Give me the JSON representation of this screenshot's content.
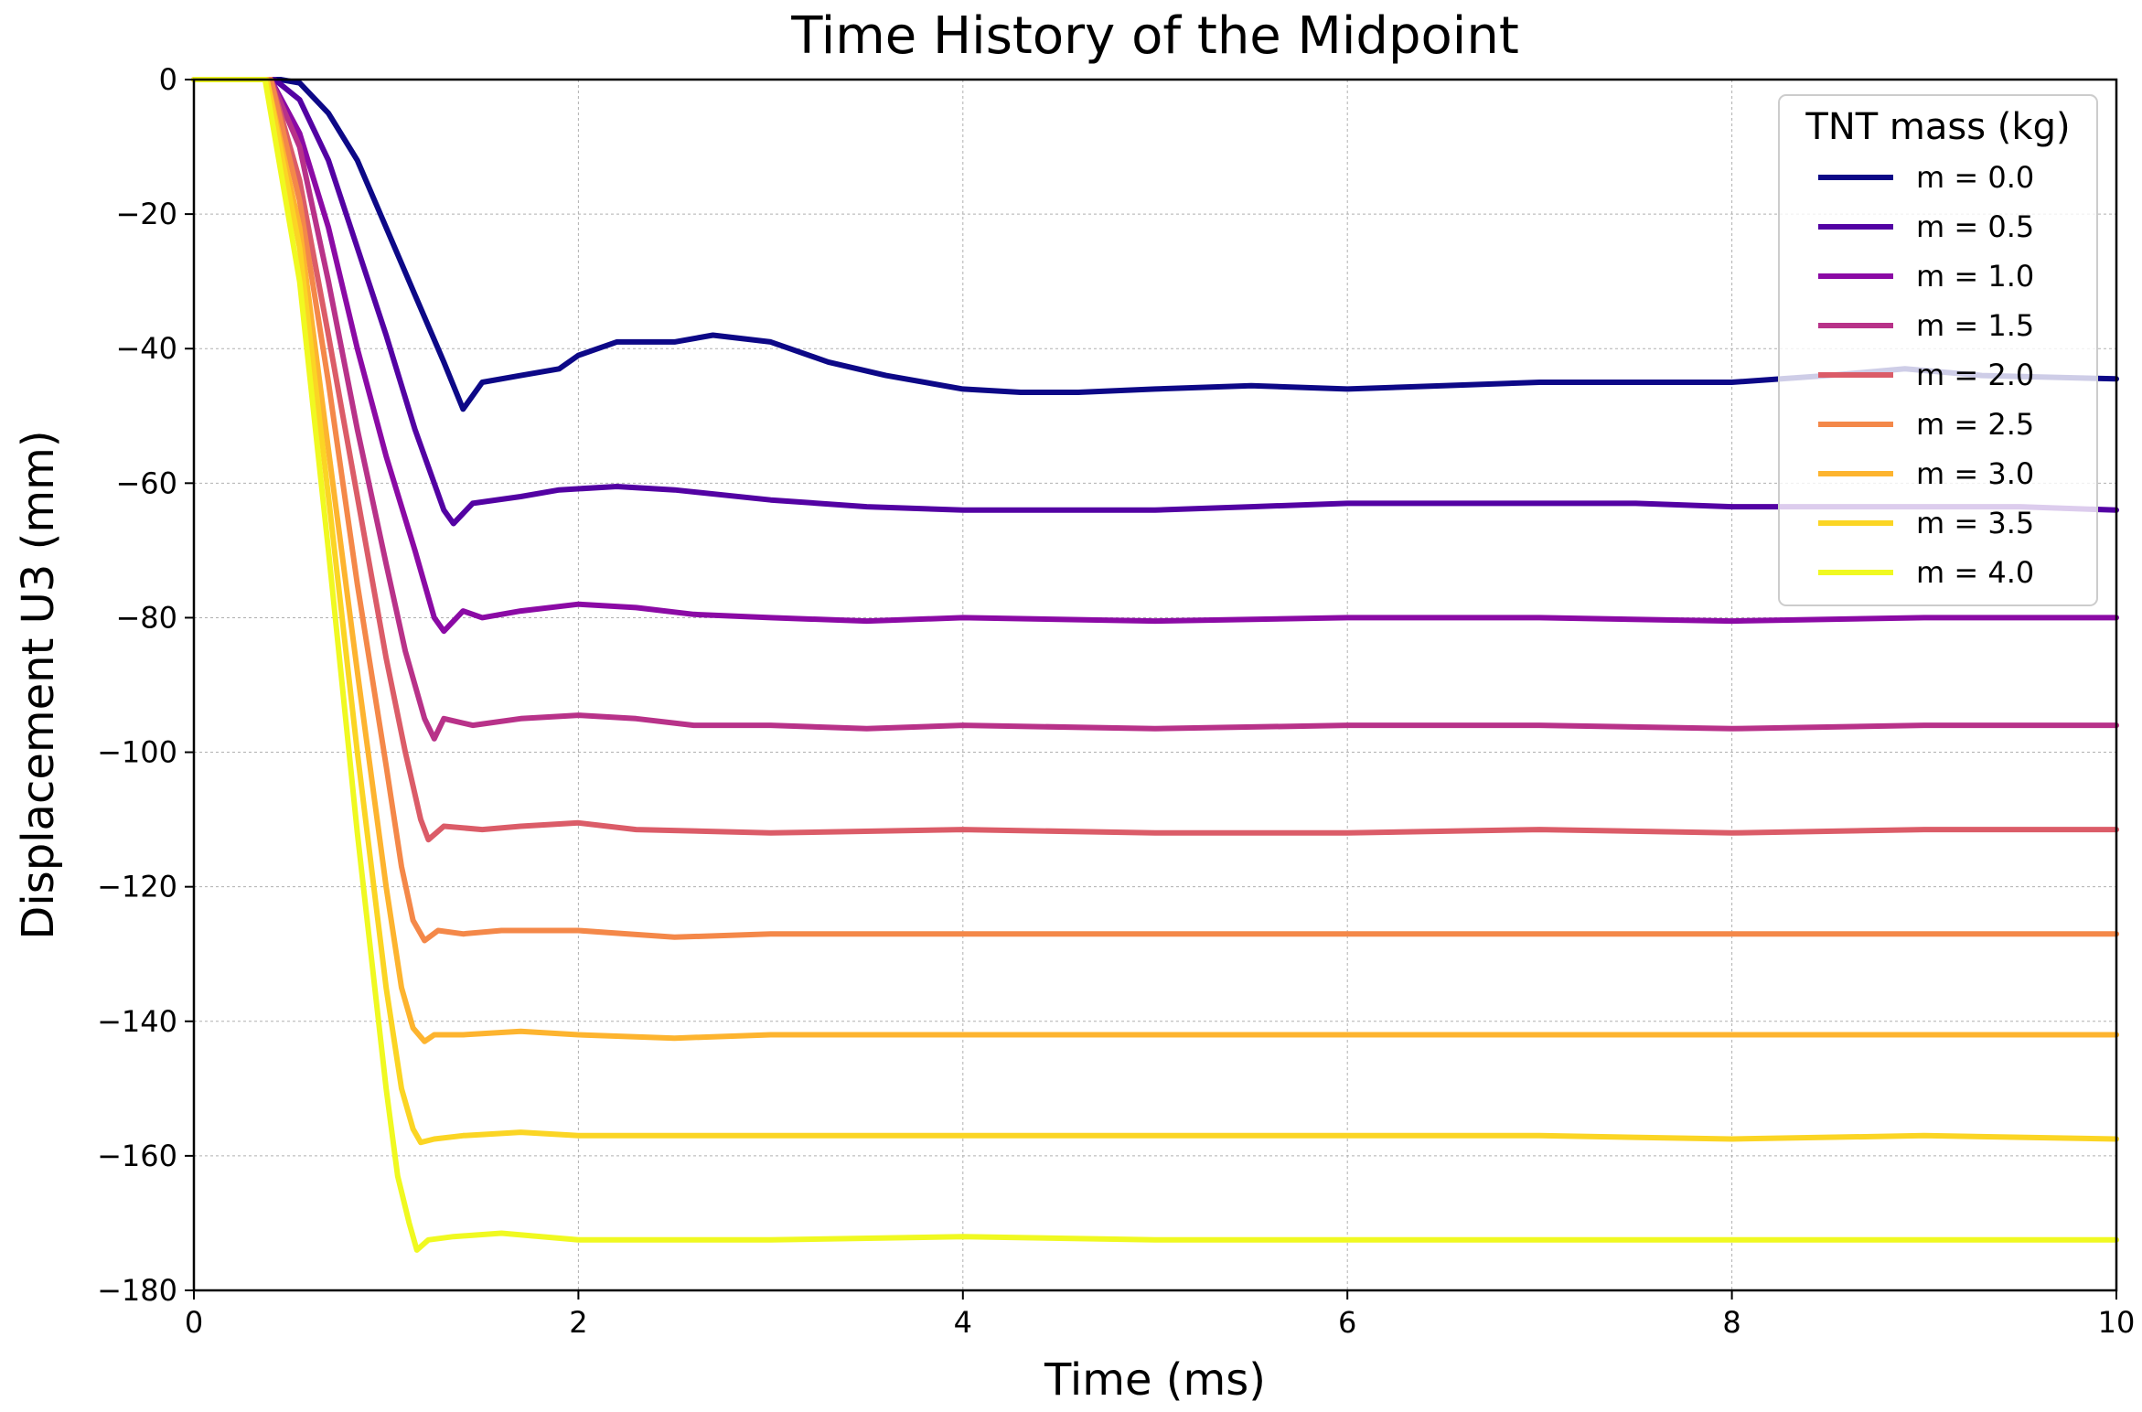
{
  "chart_data": {
    "type": "line",
    "title": "Time History of the Midpoint",
    "xlabel": "Time (ms)",
    "ylabel": "Displacement U3 (mm)",
    "xlim": [
      0,
      10
    ],
    "ylim": [
      -180,
      0
    ],
    "xticks": [
      0,
      2,
      4,
      6,
      8,
      10
    ],
    "yticks": [
      0,
      -20,
      -40,
      -60,
      -80,
      -100,
      -120,
      -140,
      -160,
      -180
    ],
    "xtick_labels": [
      "0",
      "2",
      "4",
      "6",
      "8",
      "10"
    ],
    "ytick_labels": [
      "0",
      "−20",
      "−40",
      "−60",
      "−80",
      "−100",
      "−120",
      "−140",
      "−160",
      "−180"
    ],
    "grid": true,
    "legend": {
      "title": "TNT mass (kg)",
      "placement": "top-right"
    },
    "series": [
      {
        "name": "m = 0.0",
        "color": "#0d0887",
        "x": [
          0,
          0.3,
          0.45,
          0.55,
          0.7,
          0.85,
          1.0,
          1.15,
          1.3,
          1.4,
          1.5,
          1.7,
          1.9,
          2.0,
          2.2,
          2.5,
          2.7,
          3.0,
          3.3,
          3.6,
          4.0,
          4.3,
          4.6,
          5.0,
          5.5,
          6.0,
          6.5,
          7.0,
          7.5,
          8.0,
          8.5,
          8.9,
          9.3,
          10.0
        ],
        "y": [
          0,
          0,
          0,
          -0.5,
          -5,
          -12,
          -22,
          -32,
          -42,
          -49,
          -45,
          -44,
          -43,
          -41,
          -39,
          -39,
          -38,
          -39,
          -42,
          -44,
          -46,
          -46.5,
          -46.5,
          -46,
          -45.5,
          -46,
          -45.5,
          -45,
          -45,
          -45,
          -44,
          -43,
          -44,
          -44.5
        ]
      },
      {
        "name": "m = 0.5",
        "color": "#5302a3",
        "x": [
          0,
          0.3,
          0.42,
          0.55,
          0.7,
          0.85,
          1.0,
          1.15,
          1.3,
          1.35,
          1.45,
          1.7,
          1.9,
          2.2,
          2.5,
          3.0,
          3.5,
          4.0,
          4.5,
          5.0,
          5.5,
          6.0,
          6.5,
          7.0,
          7.5,
          8.0,
          8.5,
          9.0,
          9.5,
          10.0
        ],
        "y": [
          0,
          0,
          0,
          -3,
          -12,
          -25,
          -38,
          -52,
          -64,
          -66,
          -63,
          -62,
          -61,
          -60.5,
          -61,
          -62.5,
          -63.5,
          -64,
          -64,
          -64,
          -63.5,
          -63,
          -63,
          -63,
          -63,
          -63.5,
          -63.5,
          -63.5,
          -63.5,
          -64
        ]
      },
      {
        "name": "m = 1.0",
        "color": "#8b0aa5",
        "x": [
          0,
          0.3,
          0.4,
          0.55,
          0.7,
          0.85,
          1.0,
          1.15,
          1.25,
          1.3,
          1.4,
          1.5,
          1.7,
          2.0,
          2.3,
          2.6,
          3.0,
          3.5,
          4.0,
          5.0,
          6.0,
          7.0,
          8.0,
          9.0,
          10.0
        ],
        "y": [
          0,
          0,
          0,
          -8,
          -22,
          -40,
          -56,
          -70,
          -80,
          -82,
          -79,
          -80,
          -79,
          -78,
          -78.5,
          -79.5,
          -80,
          -80.5,
          -80,
          -80.5,
          -80,
          -80,
          -80.5,
          -80,
          -80
        ]
      },
      {
        "name": "m = 1.5",
        "color": "#b83289",
        "x": [
          0,
          0.3,
          0.4,
          0.55,
          0.7,
          0.85,
          1.0,
          1.1,
          1.2,
          1.25,
          1.3,
          1.45,
          1.7,
          2.0,
          2.3,
          2.6,
          3.0,
          3.5,
          4.0,
          5.0,
          6.0,
          7.0,
          8.0,
          9.0,
          10.0
        ],
        "y": [
          0,
          0,
          0,
          -10,
          -30,
          -52,
          -72,
          -85,
          -95,
          -98,
          -95,
          -96,
          -95,
          -94.5,
          -95,
          -96,
          -96,
          -96.5,
          -96,
          -96.5,
          -96,
          -96,
          -96.5,
          -96,
          -96
        ]
      },
      {
        "name": "m = 2.0",
        "color": "#db5c68",
        "x": [
          0,
          0.3,
          0.4,
          0.55,
          0.7,
          0.85,
          1.0,
          1.1,
          1.18,
          1.22,
          1.3,
          1.5,
          1.7,
          2.0,
          2.3,
          3.0,
          4.0,
          5.0,
          6.0,
          7.0,
          8.0,
          9.0,
          10.0
        ],
        "y": [
          0,
          0,
          0,
          -15,
          -38,
          -62,
          -86,
          -100,
          -110,
          -113,
          -111,
          -111.5,
          -111,
          -110.5,
          -111.5,
          -112,
          -111.5,
          -112,
          -112,
          -111.5,
          -112,
          -111.5,
          -111.5
        ]
      },
      {
        "name": "m = 2.5",
        "color": "#f48849",
        "x": [
          0,
          0.3,
          0.4,
          0.55,
          0.7,
          0.85,
          1.0,
          1.08,
          1.14,
          1.2,
          1.27,
          1.4,
          1.6,
          2.0,
          2.5,
          3.0,
          4.0,
          5.0,
          6.0,
          7.0,
          8.0,
          9.0,
          10.0
        ],
        "y": [
          0,
          0,
          0,
          -18,
          -45,
          -75,
          -102,
          -117,
          -125,
          -128,
          -126.5,
          -127,
          -126.5,
          -126.5,
          -127.5,
          -127,
          -127,
          -127,
          -127,
          -127,
          -127,
          -127,
          -127
        ]
      },
      {
        "name": "m = 3.0",
        "color": "#fdb42f",
        "x": [
          0,
          0.3,
          0.38,
          0.55,
          0.7,
          0.85,
          1.0,
          1.08,
          1.14,
          1.2,
          1.25,
          1.4,
          1.7,
          2.0,
          2.5,
          3.0,
          4.0,
          5.0,
          6.0,
          7.0,
          8.0,
          9.0,
          10.0
        ],
        "y": [
          0,
          0,
          0,
          -22,
          -55,
          -88,
          -120,
          -135,
          -141,
          -143,
          -142,
          -142,
          -141.5,
          -142,
          -142.5,
          -142,
          -142,
          -142,
          -142,
          -142,
          -142,
          -142,
          -142
        ]
      },
      {
        "name": "m = 3.5",
        "color": "#fbd524",
        "x": [
          0,
          0.3,
          0.38,
          0.55,
          0.7,
          0.85,
          1.0,
          1.08,
          1.14,
          1.18,
          1.25,
          1.4,
          1.7,
          2.0,
          2.5,
          3.0,
          4.0,
          5.0,
          6.0,
          7.0,
          8.0,
          9.0,
          10.0
        ],
        "y": [
          0,
          0,
          0,
          -25,
          -62,
          -100,
          -135,
          -150,
          -156,
          -158,
          -157.5,
          -157,
          -156.5,
          -157,
          -157,
          -157,
          -157,
          -157,
          -157,
          -157,
          -157.5,
          -157,
          -157.5
        ]
      },
      {
        "name": "m = 4.0",
        "color": "#f0f921",
        "x": [
          0,
          0.3,
          0.37,
          0.55,
          0.7,
          0.85,
          1.0,
          1.06,
          1.12,
          1.16,
          1.22,
          1.35,
          1.6,
          2.0,
          2.5,
          3.0,
          4.0,
          5.0,
          6.0,
          7.0,
          8.0,
          9.0,
          10.0
        ],
        "y": [
          0,
          0,
          0,
          -30,
          -70,
          -112,
          -150,
          -163,
          -170,
          -174,
          -172.5,
          -172,
          -171.5,
          -172.5,
          -172.5,
          -172.5,
          -172,
          -172.5,
          -172.5,
          -172.5,
          -172.5,
          -172.5,
          -172.5
        ]
      }
    ]
  }
}
